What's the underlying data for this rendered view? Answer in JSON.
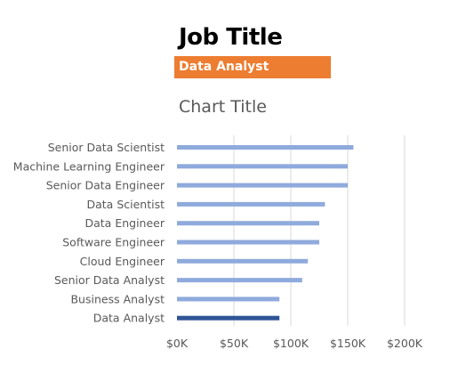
{
  "slicer": {
    "title": "Job Title",
    "selected": "Data Analyst"
  },
  "colors": {
    "accent": "#ed7d31",
    "bar": "#8faadc",
    "bar_highlight": "#2f5597",
    "grid": "#d9d9d9",
    "text": "#595959"
  },
  "chart_data": {
    "type": "bar",
    "orientation": "horizontal",
    "title": "Chart Title",
    "categories": [
      "Senior Data Scientist",
      "Machine Learning Engineer",
      "Senior Data Engineer",
      "Data Scientist",
      "Data Engineer",
      "Software Engineer",
      "Cloud Engineer",
      "Senior Data Analyst",
      "Business Analyst",
      "Data Analyst"
    ],
    "values": [
      155000,
      150000,
      150000,
      130000,
      125000,
      125000,
      115000,
      110000,
      90000,
      90000
    ],
    "highlight": "Data Analyst",
    "xlim": [
      0,
      200000
    ],
    "xticks": [
      0,
      50000,
      100000,
      150000,
      200000
    ],
    "xtick_labels": [
      "$0K",
      "$50K",
      "$100K",
      "$150K",
      "$200K"
    ],
    "grid": "vertical",
    "legend": "none"
  }
}
